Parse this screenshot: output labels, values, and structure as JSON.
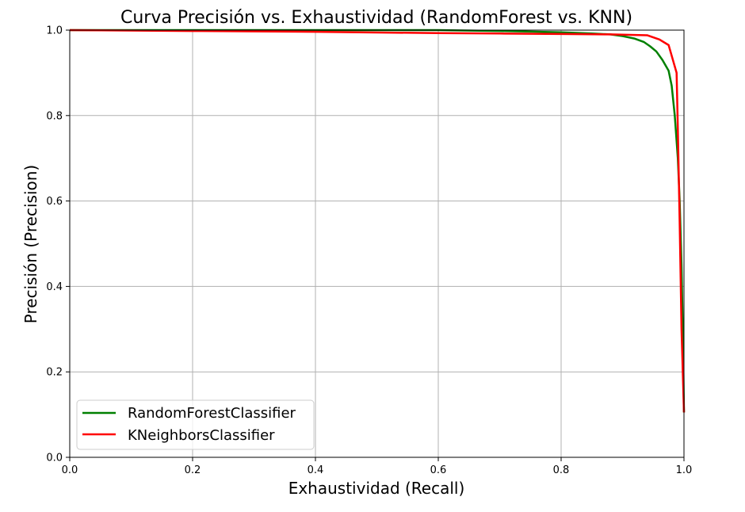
{
  "chart_data": {
    "type": "line",
    "title": "Curva Precisión vs. Exhaustividad (RandomForest vs. KNN)",
    "xlabel": "Exhaustividad (Recall)",
    "ylabel": "Precisión (Precision)",
    "xlim": [
      0.0,
      1.0
    ],
    "ylim": [
      0.0,
      1.0
    ],
    "xticks": [
      "0.0",
      "0.2",
      "0.4",
      "0.6",
      "0.8",
      "1.0"
    ],
    "yticks": [
      "0.0",
      "0.2",
      "0.4",
      "0.6",
      "0.8",
      "1.0"
    ],
    "grid": true,
    "legend_position": "lower-left",
    "series": [
      {
        "name": "RandomForestClassifier",
        "color": "#008000",
        "x": [
          0.0,
          0.2,
          0.4,
          0.6,
          0.7,
          0.8,
          0.85,
          0.88,
          0.9,
          0.92,
          0.935,
          0.945,
          0.955,
          0.965,
          0.975,
          0.98,
          0.985,
          0.99,
          0.993,
          0.996,
          0.998,
          1.0
        ],
        "y": [
          1.0,
          1.0,
          1.0,
          1.0,
          0.998,
          0.995,
          0.992,
          0.99,
          0.986,
          0.98,
          0.972,
          0.962,
          0.95,
          0.93,
          0.905,
          0.87,
          0.8,
          0.7,
          0.6,
          0.45,
          0.3,
          0.105
        ]
      },
      {
        "name": "KNeighborsClassifier",
        "color": "#ff0000",
        "x": [
          0.0,
          0.2,
          0.4,
          0.6,
          0.7,
          0.8,
          0.88,
          0.94,
          0.96,
          0.975,
          0.988,
          0.99,
          0.993,
          0.996,
          1.0
        ],
        "y": [
          1.0,
          0.998,
          0.996,
          0.993,
          0.992,
          0.991,
          0.99,
          0.988,
          0.978,
          0.965,
          0.9,
          0.77,
          0.55,
          0.3,
          0.105
        ]
      }
    ]
  }
}
